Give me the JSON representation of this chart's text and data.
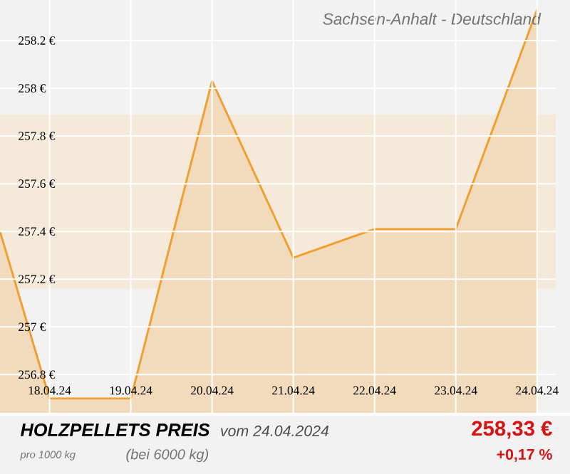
{
  "chart_data": {
    "type": "area",
    "title": "Sachsen-Anhalt - Deutschland",
    "x": [
      "2024-04-17T09:22",
      "2024-04-18",
      "2024-04-19",
      "2024-04-20",
      "2024-04-21",
      "2024-04-22",
      "2024-04-23",
      "2024-04-24"
    ],
    "values": [
      257.4,
      256.7,
      256.7,
      258.03,
      257.29,
      257.41,
      257.41,
      258.33
    ],
    "color": "#f0a030",
    "xlim": [
      "2024-04-17T09:22",
      "2024-04-24T05:31"
    ],
    "xticks": [
      {
        "value": "2024-04-18",
        "label": "18.04.24"
      },
      {
        "value": "2024-04-19",
        "label": "19.04.24"
      },
      {
        "value": "2024-04-20",
        "label": "20.04.24"
      },
      {
        "value": "2024-04-21",
        "label": "21.04.24"
      },
      {
        "value": "2024-04-22",
        "label": "22.04.24"
      },
      {
        "value": "2024-04-23",
        "label": "23.04.24"
      },
      {
        "value": "2024-04-24",
        "label": "24.04.24"
      }
    ],
    "ylim": [
      256.64,
      258.37
    ],
    "yticks": [
      {
        "value": 256.8,
        "label": "256.8 €"
      },
      {
        "value": 257,
        "label": "257 €"
      },
      {
        "value": 257.2,
        "label": "257.2 €"
      },
      {
        "value": 257.4,
        "label": "257.4 €"
      },
      {
        "value": 257.6,
        "label": "257.6 €"
      },
      {
        "value": 257.8,
        "label": "257.8 €"
      },
      {
        "value": 258,
        "label": "258 €"
      },
      {
        "value": 258.2,
        "label": "258.2 €"
      }
    ],
    "bands": [
      {
        "axis": "y",
        "from": 257.16,
        "to": 257.89,
        "color": "#f5ead9"
      }
    ],
    "grid": true,
    "annotations": [
      "HOLZPELLETS PREIS",
      "vom 24.04.2024",
      "pro 1000 kg",
      "(bei 6000 kg)",
      "258,33 €",
      "+0,17 %"
    ]
  }
}
